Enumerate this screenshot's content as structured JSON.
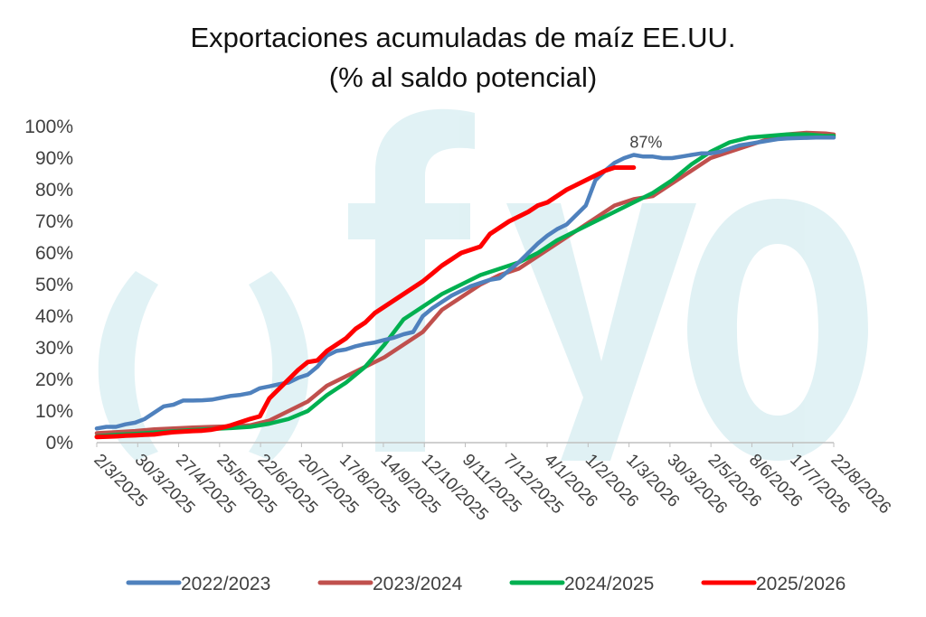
{
  "chart_data": {
    "type": "line",
    "title": "Exportaciones acumuladas de maíz EE.UU.",
    "subtitle": "(% al saldo potencial)",
    "xlabel": "",
    "ylabel": "",
    "ylim": [
      0,
      100
    ],
    "yticks": [
      "0%",
      "10%",
      "20%",
      "30%",
      "40%",
      "50%",
      "60%",
      "70%",
      "80%",
      "90%",
      "100%"
    ],
    "xlim": [
      "2025-03-02",
      "2026-08-22"
    ],
    "xticks": [
      "2/3/2025",
      "30/3/2025",
      "27/4/2025",
      "25/5/2025",
      "22/6/2025",
      "20/7/2025",
      "17/8/2025",
      "14/9/2025",
      "12/10/2025",
      "9/11/2025",
      "7/12/2025",
      "4/1/2026",
      "1/2/2026",
      "1/3/2026",
      "30/3/2026",
      "2/5/2026",
      "8/6/2026",
      "17/7/2026",
      "22/8/2026"
    ],
    "grid": false,
    "legend_position": "bottom",
    "annotation": {
      "text": "87%",
      "series": "2025/2026",
      "x": "2026-03-30",
      "y": 87
    },
    "series": [
      {
        "name": "2022/2023",
        "color": "#4f81bd",
        "x": [
          "2025-03-02",
          "2025-03-09",
          "2025-03-16",
          "2025-03-23",
          "2025-03-30",
          "2025-04-06",
          "2025-04-13",
          "2025-04-20",
          "2025-04-27",
          "2025-05-04",
          "2025-05-11",
          "2025-05-18",
          "2025-05-25",
          "2025-06-01",
          "2025-06-08",
          "2025-06-15",
          "2025-06-22",
          "2025-06-29",
          "2025-07-06",
          "2025-07-13",
          "2025-07-20",
          "2025-07-27",
          "2025-08-03",
          "2025-08-10",
          "2025-08-17",
          "2025-08-24",
          "2025-08-31",
          "2025-09-07",
          "2025-09-14",
          "2025-09-21",
          "2025-09-28",
          "2025-10-05",
          "2025-10-12",
          "2025-10-19",
          "2025-10-26",
          "2025-11-02",
          "2025-11-09",
          "2025-11-16",
          "2025-11-23",
          "2025-11-30",
          "2025-12-07",
          "2025-12-14",
          "2025-12-21",
          "2025-12-28",
          "2026-01-04",
          "2026-01-11",
          "2026-01-18",
          "2026-01-25",
          "2026-02-01",
          "2026-02-08",
          "2026-02-15",
          "2026-02-22",
          "2026-03-01",
          "2026-03-08",
          "2026-03-15",
          "2026-03-22",
          "2026-03-29",
          "2026-04-05",
          "2026-04-12",
          "2026-04-19",
          "2026-04-26",
          "2026-05-03",
          "2026-05-10",
          "2026-05-17",
          "2026-05-24",
          "2026-05-31",
          "2026-06-07",
          "2026-06-14",
          "2026-06-21",
          "2026-06-28",
          "2026-07-05",
          "2026-07-12",
          "2026-07-19",
          "2026-07-26",
          "2026-08-02",
          "2026-08-09",
          "2026-08-16",
          "2026-08-22"
        ],
        "values": [
          4.5,
          5,
          5,
          5.8,
          6.3,
          7.5,
          9.5,
          11.5,
          12,
          13.3,
          13.3,
          13.4,
          13.6,
          14.2,
          14.8,
          15.1,
          15.7,
          17.2,
          17.8,
          18.5,
          19,
          20.5,
          21.5,
          24,
          27.5,
          29,
          29.5,
          30.5,
          31.2,
          31.7,
          32.5,
          33.2,
          34.3,
          35,
          40,
          42.5,
          44.5,
          46.5,
          48,
          49.5,
          50.5,
          51.5,
          52,
          54.5,
          57,
          60,
          63,
          65.5,
          67.5,
          69,
          72,
          75,
          83,
          86,
          88.5,
          90,
          91,
          90.5,
          90.5,
          90,
          90,
          90.5,
          91,
          91.5,
          91.5,
          92,
          93,
          94,
          94.5,
          95,
          95.5,
          96,
          96.2,
          96.3,
          96.4,
          96.5,
          96.5,
          96.5
        ]
      },
      {
        "name": "2023/2024",
        "color": "#c0504d",
        "x": [
          "2025-03-02",
          "2025-03-16",
          "2025-03-30",
          "2025-04-13",
          "2025-04-27",
          "2025-05-11",
          "2025-05-25",
          "2025-06-08",
          "2025-06-22",
          "2025-07-06",
          "2025-07-20",
          "2025-08-03",
          "2025-08-17",
          "2025-08-31",
          "2025-09-14",
          "2025-09-28",
          "2025-10-12",
          "2025-10-26",
          "2025-11-09",
          "2025-11-23",
          "2025-12-07",
          "2025-12-21",
          "2026-01-04",
          "2026-01-18",
          "2026-02-01",
          "2026-02-15",
          "2026-03-01",
          "2026-03-15",
          "2026-03-29",
          "2026-04-12",
          "2026-04-26",
          "2026-05-10",
          "2026-05-24",
          "2026-06-07",
          "2026-06-21",
          "2026-07-05",
          "2026-07-19",
          "2026-08-02",
          "2026-08-16",
          "2026-08-22"
        ],
        "values": [
          3,
          3.3,
          3.7,
          4.2,
          4.5,
          4.8,
          5,
          5.2,
          5.5,
          7,
          10,
          13,
          18,
          21,
          24,
          27,
          31,
          35,
          42,
          46,
          50,
          53,
          55,
          59,
          63,
          67,
          71,
          75,
          77,
          78,
          82,
          86,
          90,
          92,
          94,
          96,
          97.5,
          98,
          97.8,
          97.5
        ]
      },
      {
        "name": "2024/2025",
        "color": "#00b050",
        "x": [
          "2025-03-02",
          "2025-03-16",
          "2025-03-30",
          "2025-04-13",
          "2025-04-27",
          "2025-05-11",
          "2025-05-25",
          "2025-06-08",
          "2025-06-22",
          "2025-07-06",
          "2025-07-20",
          "2025-08-03",
          "2025-08-17",
          "2025-08-31",
          "2025-09-14",
          "2025-09-28",
          "2025-10-12",
          "2025-10-26",
          "2025-11-09",
          "2025-11-23",
          "2025-12-07",
          "2025-12-21",
          "2026-01-04",
          "2026-01-18",
          "2026-02-01",
          "2026-02-15",
          "2026-03-01",
          "2026-03-15",
          "2026-03-29",
          "2026-04-12",
          "2026-04-26",
          "2026-05-10",
          "2026-05-24",
          "2026-06-07",
          "2026-06-21",
          "2026-07-05",
          "2026-07-19",
          "2026-08-02",
          "2026-08-16",
          "2026-08-22"
        ],
        "values": [
          2,
          2.5,
          2.8,
          3.2,
          3.6,
          4,
          4.3,
          4.6,
          5,
          6,
          7.5,
          10,
          15,
          19,
          24,
          31,
          39,
          43,
          47,
          50,
          53,
          55,
          57,
          60,
          64,
          67,
          70,
          73,
          76,
          79,
          83,
          88,
          92,
          95,
          96.5,
          97,
          97.5,
          97.5,
          97,
          97
        ]
      },
      {
        "name": "2025/2026",
        "color": "#ff0000",
        "x": [
          "2025-03-02",
          "2025-03-09",
          "2025-03-16",
          "2025-03-23",
          "2025-03-30",
          "2025-04-06",
          "2025-04-13",
          "2025-04-20",
          "2025-04-27",
          "2025-05-04",
          "2025-05-11",
          "2025-05-18",
          "2025-05-25",
          "2025-06-01",
          "2025-06-08",
          "2025-06-15",
          "2025-06-22",
          "2025-06-29",
          "2025-07-06",
          "2025-07-13",
          "2025-07-20",
          "2025-07-27",
          "2025-08-03",
          "2025-08-10",
          "2025-08-17",
          "2025-08-24",
          "2025-08-31",
          "2025-09-07",
          "2025-09-14",
          "2025-09-21",
          "2025-09-28",
          "2025-10-05",
          "2025-10-12",
          "2025-10-19",
          "2025-10-26",
          "2025-11-02",
          "2025-11-09",
          "2025-11-16",
          "2025-11-23",
          "2025-11-30",
          "2025-12-07",
          "2025-12-14",
          "2025-12-21",
          "2025-12-28",
          "2026-01-04",
          "2026-01-11",
          "2026-01-18",
          "2026-01-25",
          "2026-02-01",
          "2026-02-08",
          "2026-02-15",
          "2026-02-22",
          "2026-03-01",
          "2026-03-08",
          "2026-03-15",
          "2026-03-22",
          "2026-03-29"
        ],
        "values": [
          1.8,
          1.9,
          2,
          2.2,
          2.3,
          2.5,
          2.6,
          3,
          3.3,
          3.5,
          3.7,
          3.8,
          4.1,
          4.7,
          5.5,
          6.5,
          7.5,
          8.3,
          14,
          17,
          20,
          23,
          25.5,
          26,
          29,
          31,
          33,
          36,
          38,
          41,
          43,
          45,
          47,
          49,
          51,
          53.5,
          56,
          58,
          60,
          61,
          62,
          66,
          68,
          70,
          71.5,
          73,
          75,
          76,
          78,
          80,
          81.5,
          83,
          84.5,
          86,
          87,
          87,
          87
        ]
      }
    ]
  }
}
